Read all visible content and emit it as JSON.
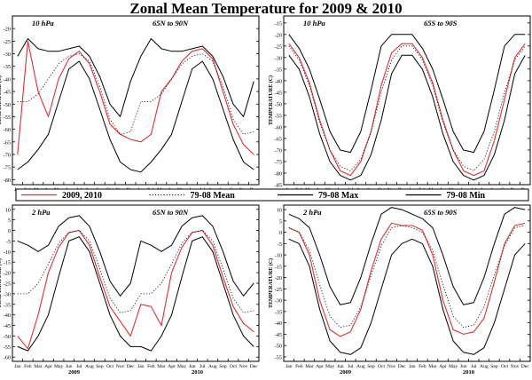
{
  "title": "Zonal Mean Temperature for 2009 & 2010",
  "legend": [
    {
      "label": "2009, 2010",
      "color": "#e03030",
      "dash": "solid"
    },
    {
      "label": "79-08 Mean",
      "color": "#000000",
      "dash": "dot"
    },
    {
      "label": "79-08 Max",
      "color": "#000000",
      "dash": "solid"
    },
    {
      "label": "79-08 Min",
      "color": "#000000",
      "dash": "solid"
    }
  ],
  "chart_data": [
    {
      "type": "line",
      "pressure": "10 hPa",
      "region": "65N to 90N",
      "ylabel": "TEMPERATURE (C)",
      "ylim": [
        -82,
        -15
      ],
      "yticks": [
        -80,
        -75,
        -70,
        -65,
        -60,
        -55,
        -50,
        -45,
        -40,
        -35,
        -30,
        -25,
        -20
      ],
      "months": [
        "Jan",
        "Feb",
        "Mar",
        "Apr",
        "May",
        "Jun",
        "Jul",
        "Aug",
        "Sep",
        "Oct",
        "Nov",
        "Dec",
        "Jan",
        "Feb",
        "Mar",
        "Apr",
        "May",
        "Jun",
        "Jul",
        "Aug",
        "Sep",
        "Oct",
        "Nov",
        "Dec"
      ],
      "years": [
        "2009",
        "2010"
      ],
      "series": [
        {
          "name": "2009, 2010",
          "values": [
            -70,
            -25,
            -45,
            -55,
            -40,
            -32,
            -29,
            -34,
            -45,
            -58,
            -62,
            -64,
            -65,
            -62,
            -45,
            -40,
            -33,
            -29,
            -28,
            -32,
            -45,
            -58,
            -66,
            -70
          ]
        },
        {
          "name": "79-08 Mean",
          "values": [
            -49,
            -49,
            -46,
            -40,
            -34,
            -31,
            -30,
            -33,
            -43,
            -56,
            -62,
            -61,
            -49,
            -49,
            -46,
            -40,
            -34,
            -31,
            -30,
            -33,
            -43,
            -56,
            -62,
            -61
          ]
        },
        {
          "name": "79-08 Max",
          "values": [
            -31,
            -24,
            -28,
            -29,
            -29,
            -28,
            -27,
            -31,
            -39,
            -50,
            -55,
            -41,
            -31,
            -24,
            -28,
            -29,
            -29,
            -28,
            -27,
            -31,
            -39,
            -50,
            -55,
            -41
          ]
        },
        {
          "name": "79-08 Min",
          "values": [
            -76,
            -73,
            -68,
            -62,
            -49,
            -36,
            -33,
            -40,
            -52,
            -64,
            -73,
            -76,
            -77,
            -73,
            -68,
            -62,
            -49,
            -36,
            -33,
            -40,
            -52,
            -64,
            -73,
            -76
          ]
        }
      ]
    },
    {
      "type": "line",
      "pressure": "10 hPa",
      "region": "65S to 90S",
      "ylabel": "TEMPERATURE (C)",
      "ylim": [
        -85,
        -12
      ],
      "yticks": [
        -85,
        -80,
        -75,
        -70,
        -65,
        -60,
        -55,
        -50,
        -45,
        -40,
        -35,
        -30,
        -25,
        -20,
        -15
      ],
      "months": [
        "Jan",
        "Feb",
        "Mar",
        "Apr",
        "May",
        "Jun",
        "Jul",
        "Aug",
        "Sep",
        "Oct",
        "Nov",
        "Dec",
        "Jan",
        "Feb",
        "Mar",
        "Apr",
        "May",
        "Jun",
        "Jul",
        "Aug",
        "Sep",
        "Oct",
        "Nov",
        "Dec"
      ],
      "years": [
        "2009",
        "2010"
      ],
      "series": [
        {
          "name": "2009, 2010",
          "values": [
            -24,
            -30,
            -41,
            -57,
            -70,
            -79,
            -81,
            -75,
            -62,
            -42,
            -28,
            -24,
            -24,
            -30,
            -41,
            -57,
            -70,
            -79,
            -81,
            -79,
            -66,
            -48,
            -30,
            -24
          ]
        },
        {
          "name": "79-08 Mean",
          "values": [
            -25,
            -31,
            -42,
            -58,
            -70,
            -77,
            -79,
            -74,
            -62,
            -45,
            -31,
            -25,
            -25,
            -31,
            -42,
            -58,
            -70,
            -77,
            -79,
            -74,
            -62,
            -45,
            -31,
            -25
          ]
        },
        {
          "name": "79-08 Max",
          "values": [
            -20,
            -26,
            -35,
            -48,
            -62,
            -70,
            -71,
            -62,
            -44,
            -25,
            -20,
            -20,
            -20,
            -26,
            -35,
            -48,
            -62,
            -70,
            -71,
            -62,
            -44,
            -25,
            -20,
            -20
          ]
        },
        {
          "name": "79-08 Min",
          "values": [
            -29,
            -35,
            -47,
            -63,
            -75,
            -81,
            -83,
            -81,
            -72,
            -57,
            -37,
            -29,
            -29,
            -35,
            -47,
            -63,
            -75,
            -81,
            -83,
            -81,
            -72,
            -57,
            -37,
            -29
          ]
        }
      ]
    },
    {
      "type": "line",
      "pressure": "2 hPa",
      "region": "65N to 90N",
      "ylabel": "TEMPERATURE (C)",
      "ylim": [
        -62,
        12
      ],
      "yticks": [
        -60,
        -55,
        -50,
        -45,
        -40,
        -35,
        -30,
        -25,
        -20,
        -15,
        -10,
        -5,
        0,
        5,
        10
      ],
      "months": [
        "Jan",
        "Feb",
        "Mar",
        "Apr",
        "May",
        "Jun",
        "Jul",
        "Aug",
        "Sep",
        "Oct",
        "Nov",
        "Dec",
        "Jan",
        "Feb",
        "Mar",
        "Apr",
        "May",
        "Jun",
        "Jul",
        "Aug",
        "Sep",
        "Oct",
        "Nov",
        "Dec"
      ],
      "years": [
        "2009",
        "2010"
      ],
      "series": [
        {
          "name": "2009, 2010",
          "values": [
            -50,
            -56,
            -40,
            -20,
            -8,
            -1,
            0,
            -7,
            -22,
            -36,
            -43,
            -50,
            -35,
            -36,
            -45,
            -20,
            -8,
            -1,
            0,
            -7,
            -22,
            -36,
            -44,
            -48
          ]
        },
        {
          "name": "79-08 Mean",
          "values": [
            -30,
            -30,
            -25,
            -16,
            -6,
            -1,
            0,
            -5,
            -18,
            -32,
            -39,
            -38,
            -30,
            -30,
            -25,
            -16,
            -6,
            -1,
            0,
            -5,
            -18,
            -32,
            -39,
            -38
          ]
        },
        {
          "name": "79-08 Max",
          "values": [
            -5,
            -7,
            -10,
            -7,
            2,
            6,
            7,
            2,
            -10,
            -24,
            -31,
            -25,
            -5,
            -7,
            -10,
            -7,
            2,
            6,
            7,
            2,
            -10,
            -24,
            -31,
            -25
          ]
        },
        {
          "name": "79-08 Min",
          "values": [
            -55,
            -57,
            -50,
            -40,
            -22,
            -5,
            -3,
            -10,
            -25,
            -40,
            -50,
            -55,
            -55,
            -57,
            -50,
            -40,
            -22,
            -5,
            -3,
            -10,
            -25,
            -40,
            -50,
            -55
          ]
        }
      ]
    },
    {
      "type": "line",
      "pressure": "2 hPa",
      "region": "65S to 90S",
      "ylabel": "TEMPERATURE (C)",
      "ylim": [
        -57,
        12
      ],
      "yticks": [
        -55,
        -50,
        -45,
        -40,
        -35,
        -30,
        -25,
        -20,
        -15,
        -10,
        -5,
        0,
        5,
        10
      ],
      "months": [
        "Jan",
        "Feb",
        "Mar",
        "Apr",
        "May",
        "Jun",
        "Jul",
        "Aug",
        "Sep",
        "Oct",
        "Nov",
        "Dec",
        "Jan",
        "Feb",
        "Mar",
        "Apr",
        "May",
        "Jun",
        "Jul",
        "Aug",
        "Sep",
        "Oct",
        "Nov",
        "Dec"
      ],
      "years": [
        "2009",
        "2010"
      ],
      "series": [
        {
          "name": "2009, 2010",
          "values": [
            2,
            0,
            -10,
            -30,
            -43,
            -46,
            -44,
            -34,
            -17,
            -3,
            4,
            3,
            3,
            1,
            -10,
            -30,
            -43,
            -45,
            -44,
            -38,
            -22,
            -5,
            3,
            4
          ]
        },
        {
          "name": "79-08 Mean",
          "values": [
            2,
            0,
            -8,
            -23,
            -37,
            -42,
            -41,
            -33,
            -19,
            -6,
            2,
            3,
            2,
            0,
            -8,
            -23,
            -37,
            -42,
            -41,
            -33,
            -19,
            -6,
            2,
            3
          ]
        },
        {
          "name": "79-08 Max",
          "values": [
            8,
            6,
            2,
            -10,
            -24,
            -32,
            -31,
            -20,
            -5,
            8,
            11,
            10,
            8,
            6,
            2,
            -10,
            -24,
            -32,
            -31,
            -20,
            -5,
            8,
            11,
            10
          ]
        },
        {
          "name": "79-08 Min",
          "values": [
            -3,
            -5,
            -15,
            -34,
            -48,
            -53,
            -54,
            -51,
            -40,
            -25,
            -10,
            -5,
            -3,
            -5,
            -15,
            -34,
            -48,
            -53,
            -54,
            -51,
            -40,
            -25,
            -10,
            -5
          ]
        }
      ]
    }
  ]
}
